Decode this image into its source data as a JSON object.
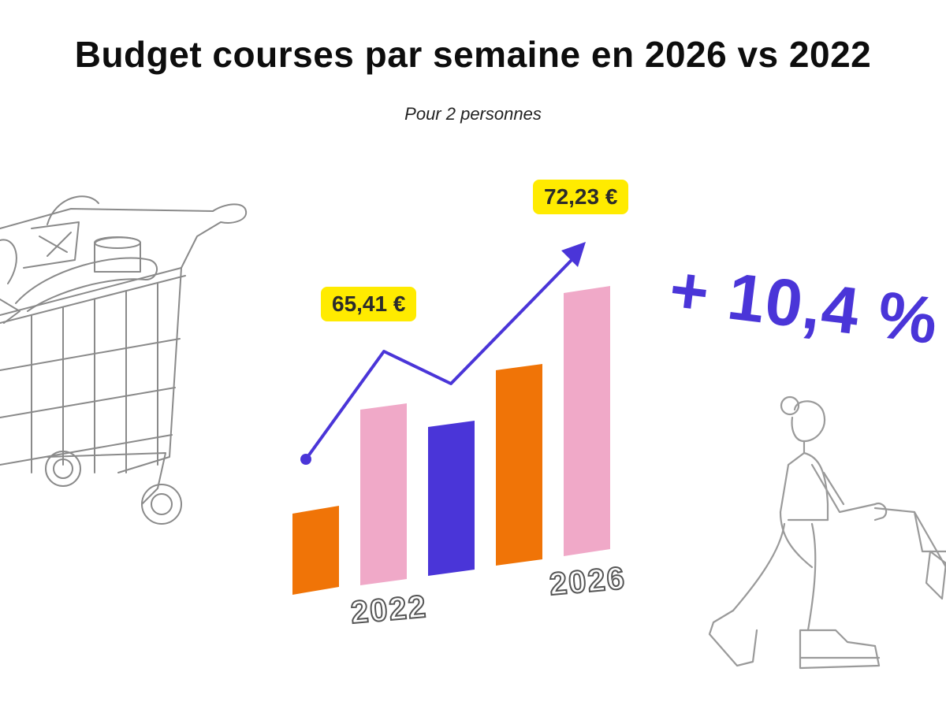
{
  "title": "Budget courses par semaine en 2026 vs 2022",
  "subtitle": "Pour 2 personnes",
  "change_label": "+ 10,4 %",
  "colors": {
    "purple": "#4a35d8",
    "orange": "#f07407",
    "pink": "#f0a9c8",
    "yellow": "#ffeb00"
  },
  "icons": [
    "shopping-cart-illustration",
    "person-pushing-cart-illustration",
    "trend-arrow"
  ],
  "chart_data": {
    "type": "bar",
    "title": "Budget courses par semaine en 2026 vs 2022",
    "subtitle": "Pour 2 personnes",
    "x_labels": [
      "2022",
      "2026"
    ],
    "value_labels": [
      "65,41 €",
      "72,23 €"
    ],
    "values": [
      65.41,
      72.23
    ],
    "change_label": "+ 10,4 %",
    "decorative_bar_colors": [
      "#f07407",
      "#f0a9c8",
      "#4a35d8",
      "#f07407",
      "#f0a9c8"
    ],
    "grid": false,
    "legend": "none"
  }
}
